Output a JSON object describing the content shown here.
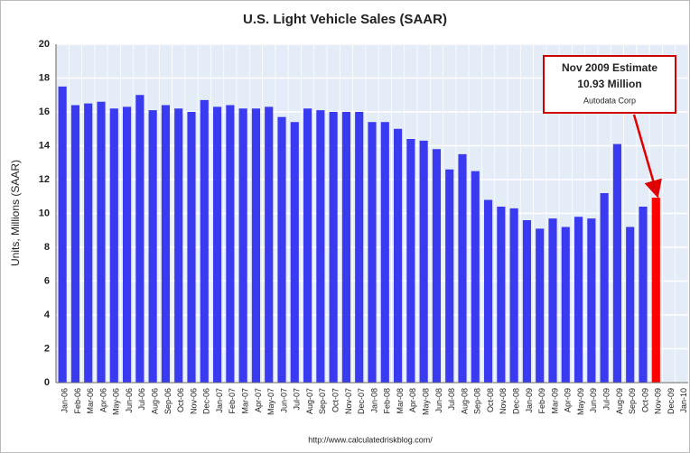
{
  "chart_data": {
    "type": "bar",
    "title": "U.S. Light Vehicle Sales (SAAR)",
    "y_label": "Units, Millions (SAAR)",
    "source": "http://www.calculatedriskblog.com/",
    "annotation": {
      "title": "Nov 2009 Estimate",
      "value": 10.93,
      "value_label": "10.93 Million",
      "source": "Autodata Corp"
    },
    "categories": [
      "Jan-06",
      "Feb-06",
      "Mar-06",
      "Apr-06",
      "May-06",
      "Jun-06",
      "Jul-06",
      "Aug-06",
      "Sep-06",
      "Oct-06",
      "Nov-06",
      "Dec-06",
      "Jan-07",
      "Feb-07",
      "Mar-07",
      "Apr-07",
      "May-07",
      "Jun-07",
      "Jul-07",
      "Aug-07",
      "Sep-07",
      "Oct-07",
      "Nov-07",
      "Dec-07",
      "Jan-08",
      "Feb-08",
      "Mar-08",
      "Apr-08",
      "May-08",
      "Jun-08",
      "Jul-08",
      "Aug-08",
      "Sep-08",
      "Oct-08",
      "Nov-08",
      "Dec-08",
      "Jan-09",
      "Feb-09",
      "Mar-09",
      "Apr-09",
      "May-09",
      "Jun-09",
      "Jul-09",
      "Aug-09",
      "Sep-09",
      "Oct-09",
      "Nov-09",
      "Dec-09",
      "Jan-10"
    ],
    "values": [
      17.5,
      16.4,
      16.5,
      16.6,
      16.2,
      16.3,
      17.0,
      16.1,
      16.4,
      16.2,
      16.0,
      16.7,
      16.3,
      16.4,
      16.2,
      16.2,
      16.3,
      15.7,
      15.4,
      16.2,
      16.1,
      16.0,
      16.0,
      16.0,
      15.4,
      15.4,
      15.0,
      14.4,
      14.3,
      13.8,
      12.6,
      13.5,
      12.5,
      10.8,
      10.4,
      10.3,
      9.6,
      9.1,
      9.7,
      9.2,
      9.8,
      9.7,
      11.2,
      14.1,
      9.2,
      10.4,
      10.93,
      null,
      null
    ],
    "colors": [
      "#3a3af0",
      "#3a3af0",
      "#3a3af0",
      "#3a3af0",
      "#3a3af0",
      "#3a3af0",
      "#3a3af0",
      "#3a3af0",
      "#3a3af0",
      "#3a3af0",
      "#3a3af0",
      "#3a3af0",
      "#3a3af0",
      "#3a3af0",
      "#3a3af0",
      "#3a3af0",
      "#3a3af0",
      "#3a3af0",
      "#3a3af0",
      "#3a3af0",
      "#3a3af0",
      "#3a3af0",
      "#3a3af0",
      "#3a3af0",
      "#3a3af0",
      "#3a3af0",
      "#3a3af0",
      "#3a3af0",
      "#3a3af0",
      "#3a3af0",
      "#3a3af0",
      "#3a3af0",
      "#3a3af0",
      "#3a3af0",
      "#3a3af0",
      "#3a3af0",
      "#3a3af0",
      "#3a3af0",
      "#3a3af0",
      "#3a3af0",
      "#3a3af0",
      "#3a3af0",
      "#3a3af0",
      "#3a3af0",
      "#3a3af0",
      "#3a3af0",
      "#ff0000",
      null,
      null
    ],
    "ylim": [
      0,
      20
    ],
    "yticks": [
      0,
      2,
      4,
      6,
      8,
      10,
      12,
      14,
      16,
      18,
      20
    ],
    "grid": true
  }
}
